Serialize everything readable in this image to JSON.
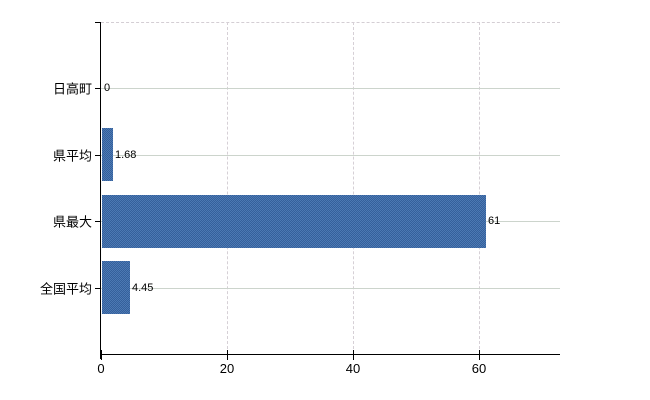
{
  "chart": {
    "title": "",
    "background_color": "#ffffff",
    "axis_color": "#000000",
    "bar_color": "#3f6ca7",
    "bar_dither_light": "#4c79b3",
    "bar_dither_dark": "#35609b",
    "hgrid_color": "#ccd4cc",
    "vgrid_color": "#d6d0d6",
    "text_color": "#000000"
  },
  "chart_data": {
    "type": "bar",
    "orientation": "horizontal",
    "title": "",
    "xlabel": "",
    "ylabel": "",
    "categories": [
      "日高町",
      "県平均",
      "県最大",
      "全国平均"
    ],
    "values": [
      0,
      1.68,
      61,
      4.45
    ],
    "value_labels": [
      "0",
      "1.68",
      "61",
      "4.45"
    ],
    "x_ticks": [
      0,
      20,
      40,
      60
    ],
    "x_tick_labels": [
      "0",
      "20",
      "40",
      "60"
    ],
    "xlim": [
      0,
      73
    ],
    "grid": true,
    "grid_style": "horizontal solid lines at category centers, vertical dashed lines at x ticks, dashed top border",
    "legend": false
  }
}
